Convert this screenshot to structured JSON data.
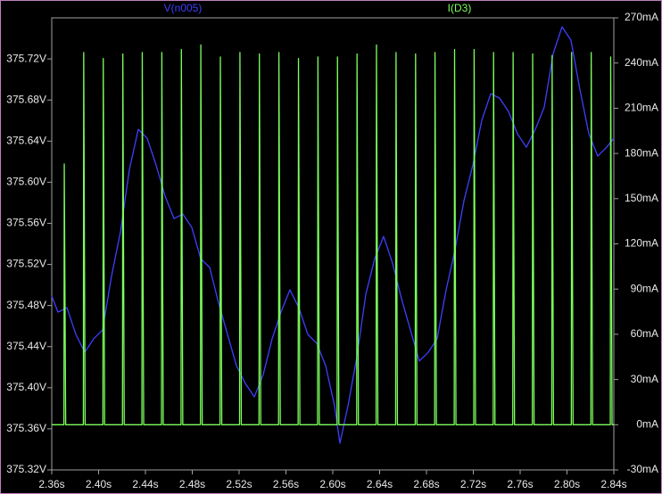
{
  "chart_data": {
    "type": "line",
    "xlim": [
      2.36,
      2.84
    ],
    "xticks": [
      {
        "value": 2.36,
        "label": "2.36s"
      },
      {
        "value": 2.4,
        "label": "2.40s"
      },
      {
        "value": 2.44,
        "label": "2.44s"
      },
      {
        "value": 2.48,
        "label": "2.48s"
      },
      {
        "value": 2.52,
        "label": "2.52s"
      },
      {
        "value": 2.56,
        "label": "2.56s"
      },
      {
        "value": 2.6,
        "label": "2.60s"
      },
      {
        "value": 2.64,
        "label": "2.64s"
      },
      {
        "value": 2.68,
        "label": "2.68s"
      },
      {
        "value": 2.72,
        "label": "2.72s"
      },
      {
        "value": 2.76,
        "label": "2.76s"
      },
      {
        "value": 2.8,
        "label": "2.80s"
      },
      {
        "value": 2.84,
        "label": "2.84s"
      }
    ],
    "ylim": [
      375.32,
      375.76
    ],
    "yticks": [
      {
        "value": 375.32,
        "label": "375.32V"
      },
      {
        "value": 375.36,
        "label": "375.36V"
      },
      {
        "value": 375.4,
        "label": "375.40V"
      },
      {
        "value": 375.44,
        "label": "375.44V"
      },
      {
        "value": 375.48,
        "label": "375.48V"
      },
      {
        "value": 375.52,
        "label": "375.52V"
      },
      {
        "value": 375.56,
        "label": "375.56V"
      },
      {
        "value": 375.6,
        "label": "375.60V"
      },
      {
        "value": 375.64,
        "label": "375.64V"
      },
      {
        "value": 375.68,
        "label": "375.68V"
      },
      {
        "value": 375.72,
        "label": "375.72V"
      }
    ],
    "y2lim": [
      -30,
      270
    ],
    "y2ticks": [
      {
        "value": -30,
        "label": "-30mA"
      },
      {
        "value": 0,
        "label": "0mA"
      },
      {
        "value": 30,
        "label": "30mA"
      },
      {
        "value": 60,
        "label": "60mA"
      },
      {
        "value": 90,
        "label": "90mA"
      },
      {
        "value": 120,
        "label": "120mA"
      },
      {
        "value": 150,
        "label": "150mA"
      },
      {
        "value": 180,
        "label": "180mA"
      },
      {
        "value": 210,
        "label": "210mA"
      },
      {
        "value": 240,
        "label": "240mA"
      },
      {
        "value": 270,
        "label": "270mA"
      }
    ],
    "grid": false,
    "series": [
      {
        "name": "V(n005)",
        "color": "#3f3fff",
        "axis": "y",
        "x": [
          2.36,
          2.3653,
          2.373,
          2.3806,
          2.3882,
          2.3958,
          2.4034,
          2.411,
          2.4187,
          2.4263,
          2.4339,
          2.4415,
          2.4491,
          2.4568,
          2.4644,
          2.472,
          2.4796,
          2.4872,
          2.4949,
          2.5025,
          2.5101,
          2.5177,
          2.5253,
          2.533,
          2.5406,
          2.5482,
          2.5558,
          2.5634,
          2.571,
          2.5787,
          2.5863,
          2.5939,
          2.6015,
          2.6061,
          2.613,
          2.6206,
          2.6282,
          2.6358,
          2.6434,
          2.651,
          2.6587,
          2.6663,
          2.6739,
          2.6815,
          2.6891,
          2.6968,
          2.7044,
          2.712,
          2.7196,
          2.7272,
          2.7349,
          2.7425,
          2.7501,
          2.7577,
          2.7653,
          2.773,
          2.7806,
          2.7882,
          2.7958,
          2.8034,
          2.811,
          2.8187,
          2.8263,
          2.8339,
          2.84
        ],
        "values": [
          375.4892,
          375.4736,
          375.4779,
          375.4519,
          375.4345,
          375.4476,
          375.4562,
          375.5083,
          375.5517,
          375.6124,
          375.6515,
          375.6428,
          375.6167,
          375.5864,
          375.5647,
          375.569,
          375.556,
          375.5256,
          375.517,
          375.4823,
          375.4519,
          375.4215,
          375.4042,
          375.3911,
          375.4128,
          375.4476,
          375.4736,
          375.4953,
          375.4779,
          375.4519,
          375.4432,
          375.4215,
          375.3825,
          375.346,
          375.3825,
          375.4302,
          375.4909,
          375.5256,
          375.5473,
          375.5213,
          375.4866,
          375.4562,
          375.4259,
          375.4345,
          375.4476,
          375.4953,
          375.5343,
          375.582,
          375.6167,
          375.6601,
          375.6862,
          375.6818,
          375.6688,
          375.6471,
          375.6341,
          375.6515,
          375.6731,
          375.7252,
          375.7512,
          375.7382,
          375.6905,
          375.6471,
          375.6254,
          375.6341,
          375.6428
        ]
      },
      {
        "name": "I(D3)",
        "color": "#7cff5c",
        "axis": "y2",
        "x": [
          2.36,
          2.3704,
          2.3707,
          2.3719,
          2.387,
          2.3873,
          2.3885,
          2.4037,
          2.404,
          2.4052,
          2.4204,
          2.4207,
          2.4219,
          2.437,
          2.4373,
          2.4385,
          2.4537,
          2.454,
          2.4552,
          2.4704,
          2.4707,
          2.4719,
          2.487,
          2.4873,
          2.4885,
          2.5037,
          2.504,
          2.5052,
          2.5204,
          2.5207,
          2.5219,
          2.537,
          2.5373,
          2.5385,
          2.5537,
          2.554,
          2.5552,
          2.5704,
          2.5707,
          2.5719,
          2.587,
          2.5873,
          2.5885,
          2.6037,
          2.604,
          2.6052,
          2.6204,
          2.6207,
          2.6219,
          2.637,
          2.6373,
          2.6385,
          2.6537,
          2.654,
          2.6552,
          2.6704,
          2.6707,
          2.6719,
          2.687,
          2.6873,
          2.6885,
          2.7037,
          2.704,
          2.7052,
          2.7204,
          2.7207,
          2.7219,
          2.737,
          2.7373,
          2.7385,
          2.7537,
          2.754,
          2.7552,
          2.7704,
          2.7707,
          2.7719,
          2.787,
          2.7873,
          2.7885,
          2.8037,
          2.804,
          2.8052,
          2.8204,
          2.8207,
          2.8219,
          2.837,
          2.8373,
          2.8385,
          2.84
        ],
        "values": [
          0,
          0,
          173,
          0,
          0,
          247,
          0,
          0,
          243,
          0,
          0,
          246,
          0,
          0,
          247,
          0,
          0,
          247,
          0,
          0,
          249,
          0,
          0,
          252,
          0,
          0,
          244,
          0,
          0,
          247,
          0,
          0,
          246,
          0,
          0,
          247,
          0,
          0,
          243,
          0,
          0,
          244,
          0,
          0,
          244,
          0,
          0,
          246,
          0,
          0,
          252,
          0,
          0,
          247,
          0,
          0,
          246,
          0,
          0,
          247,
          0,
          0,
          249,
          0,
          0,
          249,
          0,
          0,
          247,
          0,
          0,
          247,
          0,
          0,
          246,
          0,
          0,
          245,
          0,
          0,
          247,
          0,
          0,
          247,
          0,
          0,
          244,
          0,
          0
        ]
      }
    ]
  }
}
